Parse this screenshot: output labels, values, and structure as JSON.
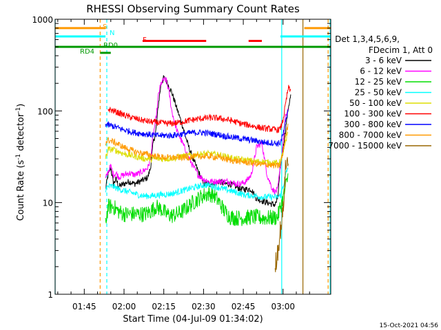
{
  "chart_data": {
    "type": "line",
    "title": "RHESSI Observing Summary Count Rates",
    "xlabel": "Start Time (04-Jul-09 01:34:02)",
    "ylabel_main": "Count Rate (s",
    "ylabel_sup": "-1",
    "ylabel_mid": " detector",
    "ylabel_end": ")",
    "y_scale": "log",
    "ylim": [
      1,
      1000
    ],
    "xlim": [
      34,
      138
    ],
    "x_unit": "minutes after 01:00 UT",
    "x_ticks": [
      {
        "value": 45,
        "label": "01:45"
      },
      {
        "value": 60,
        "label": "02:00"
      },
      {
        "value": 75,
        "label": "02:15"
      },
      {
        "value": 90,
        "label": "02:30"
      },
      {
        "value": 105,
        "label": "02:45"
      },
      {
        "value": 120,
        "label": "03:00"
      }
    ],
    "y_ticks": [
      {
        "value": 1,
        "label": "1"
      },
      {
        "value": 10,
        "label": "10"
      },
      {
        "value": 100,
        "label": "100"
      },
      {
        "value": 1000,
        "label": "1000"
      }
    ],
    "legend": {
      "position": "right",
      "header": [
        "Det 1,3,4,5,6,9,",
        "FDecim 1, Att 0"
      ],
      "entries": [
        {
          "label": "3 - 6 keV",
          "color": "#000000"
        },
        {
          "label": "6 - 12 keV",
          "color": "#ff00ff"
        },
        {
          "label": "12 - 25 keV",
          "color": "#00dd00"
        },
        {
          "label": "25 - 50 keV",
          "color": "#00ffff"
        },
        {
          "label": "50 - 100 keV",
          "color": "#dddd00"
        },
        {
          "label": "100 - 300 keV",
          "color": "#ff0000"
        },
        {
          "label": "300 - 800 keV",
          "color": "#0000ff"
        },
        {
          "label": "800 - 7000 keV",
          "color": "#ff9900"
        },
        {
          "label": "7000 - 15000 keV",
          "color": "#996600"
        }
      ]
    },
    "series": [
      {
        "name": "3 - 6 keV",
        "color": "#000000",
        "x": [
          53,
          54,
          55,
          56,
          57,
          58,
          60,
          62,
          64,
          66,
          68,
          69,
          70,
          71,
          72,
          73,
          74,
          75,
          76,
          78,
          80,
          82,
          84,
          85,
          86,
          88,
          90,
          92,
          94,
          96,
          98,
          100,
          102,
          104,
          106,
          108,
          110,
          112,
          114,
          116,
          117,
          118,
          119,
          120,
          121,
          122,
          123
        ],
        "y": [
          14,
          20,
          24,
          16,
          18,
          15,
          16,
          17,
          16,
          17,
          18,
          19,
          24,
          45,
          60,
          120,
          200,
          230,
          210,
          160,
          105,
          70,
          44,
          36,
          30,
          22,
          16,
          16,
          16,
          17,
          16,
          16,
          15,
          14,
          14,
          14,
          11,
          10.5,
          10,
          9.6,
          9.5,
          11,
          25,
          40,
          65,
          110,
          150
        ]
      },
      {
        "name": "6 - 12 keV",
        "color": "#ff00ff",
        "x": [
          53,
          54,
          55,
          56,
          57,
          58,
          60,
          62,
          64,
          66,
          68,
          69,
          70,
          71,
          72,
          73,
          74,
          75,
          76,
          77,
          78,
          80,
          82,
          84,
          86,
          88,
          90,
          92,
          94,
          96,
          98,
          100,
          102,
          104,
          106,
          108,
          109,
          110,
          112,
          114,
          116,
          117,
          118,
          119,
          120,
          121,
          122
        ],
        "y": [
          18,
          22,
          25,
          20,
          21,
          19,
          20,
          21,
          20,
          21,
          23,
          24,
          30,
          55,
          80,
          150,
          200,
          220,
          215,
          160,
          100,
          60,
          45,
          33,
          25,
          20,
          18,
          17,
          17,
          17,
          17,
          17,
          16,
          16,
          17,
          20,
          28,
          40,
          45,
          20,
          14,
          13,
          14,
          25,
          45,
          90,
          100
        ]
      },
      {
        "name": "12 - 25 keV",
        "color": "#00dd00",
        "x": [
          53,
          54,
          56,
          58,
          60,
          62,
          64,
          66,
          68,
          70,
          72,
          74,
          76,
          78,
          80,
          82,
          84,
          86,
          88,
          90,
          92,
          94,
          96,
          98,
          100,
          102,
          104,
          106,
          108,
          110,
          112,
          114,
          116,
          118,
          119,
          120,
          121,
          122
        ],
        "y": [
          6,
          9,
          9,
          8,
          7.5,
          7.5,
          7.5,
          7.5,
          7.5,
          8,
          9,
          8.5,
          7.5,
          7.2,
          7.5,
          8,
          9,
          10,
          11,
          12,
          12.5,
          12,
          10,
          8,
          7,
          6.8,
          6.8,
          6.8,
          7,
          6.9,
          6.8,
          6.8,
          6.8,
          7,
          9,
          11,
          15,
          20
        ]
      },
      {
        "name": "25 - 50 keV",
        "color": "#00ffff",
        "x": [
          53,
          54,
          56,
          58,
          60,
          62,
          64,
          66,
          68,
          70,
          72,
          74,
          76,
          78,
          80,
          82,
          84,
          86,
          88,
          90,
          92,
          94,
          96,
          98,
          100,
          102,
          104,
          106,
          108,
          110,
          112,
          114,
          116,
          118,
          119,
          120,
          121,
          122
        ],
        "y": [
          14,
          15,
          15,
          14,
          13.5,
          13,
          12.5,
          12,
          11.8,
          11.8,
          12,
          12.2,
          12.3,
          12.5,
          13,
          13.5,
          14,
          14.5,
          15,
          15.5,
          15.5,
          15,
          14.5,
          14,
          13.5,
          13,
          12.5,
          12,
          12,
          11.8,
          11.5,
          11.5,
          11.5,
          11.5,
          12,
          15,
          20,
          25
        ]
      },
      {
        "name": "50 - 100 keV",
        "color": "#dddd00",
        "x": [
          53,
          54,
          56,
          58,
          60,
          62,
          64,
          66,
          68,
          70,
          72,
          74,
          76,
          78,
          80,
          82,
          84,
          86,
          88,
          90,
          92,
          94,
          96,
          98,
          100,
          102,
          104,
          106,
          108,
          110,
          112,
          114,
          116,
          118,
          119,
          120,
          121,
          122
        ],
        "y": [
          30,
          38,
          38,
          36,
          34,
          33,
          32,
          31,
          30,
          30,
          30,
          30,
          30,
          30.5,
          31,
          32,
          32.5,
          33,
          33.5,
          34,
          34,
          33.5,
          33,
          32,
          31,
          30,
          29.5,
          29,
          28.5,
          28,
          28,
          27.5,
          27,
          27,
          28,
          35,
          45,
          60
        ]
      },
      {
        "name": "100 - 300 keV",
        "color": "#ff0000",
        "x": [
          54,
          56,
          58,
          60,
          62,
          64,
          66,
          68,
          70,
          72,
          74,
          76,
          78,
          80,
          82,
          84,
          86,
          88,
          90,
          92,
          94,
          96,
          98,
          100,
          102,
          104,
          106,
          108,
          110,
          112,
          114,
          116,
          118,
          119,
          120,
          121,
          122,
          123
        ],
        "y": [
          105,
          100,
          95,
          90,
          86,
          83,
          80,
          78,
          76,
          75,
          74,
          73,
          73,
          74,
          76,
          78,
          80,
          82,
          83,
          84,
          84,
          83,
          81,
          79,
          76,
          73,
          71,
          69,
          67,
          65,
          64,
          63,
          62,
          64,
          80,
          120,
          180,
          160
        ]
      },
      {
        "name": "300 - 800 keV",
        "color": "#0000ff",
        "x": [
          53,
          54,
          56,
          58,
          60,
          62,
          64,
          66,
          68,
          70,
          72,
          74,
          76,
          78,
          80,
          82,
          84,
          86,
          88,
          90,
          92,
          94,
          96,
          98,
          100,
          102,
          104,
          106,
          108,
          110,
          112,
          114,
          116,
          118,
          119,
          120,
          121,
          122
        ],
        "y": [
          72,
          70,
          68,
          65,
          62,
          60,
          58,
          57,
          56,
          55,
          54,
          54,
          54,
          54,
          55,
          56,
          57,
          58,
          58,
          58,
          57,
          56,
          55,
          53,
          52,
          51,
          50,
          49,
          48,
          47,
          46,
          45,
          45,
          44,
          45,
          55,
          75,
          110
        ]
      },
      {
        "name": "800 - 7000 keV",
        "color": "#ff9900",
        "x": [
          53,
          54,
          56,
          58,
          60,
          62,
          64,
          66,
          68,
          70,
          72,
          74,
          76,
          78,
          80,
          82,
          84,
          86,
          88,
          90,
          92,
          94,
          96,
          98,
          100,
          102,
          104,
          106,
          108,
          110,
          112,
          114,
          116,
          118,
          119,
          120,
          121,
          122
        ],
        "y": [
          45,
          48,
          46,
          43,
          40,
          38,
          36,
          35,
          34,
          33,
          32,
          31.5,
          31,
          31,
          31,
          31,
          31,
          31.5,
          32,
          32,
          32,
          31.5,
          31,
          30,
          29,
          28.5,
          28,
          27.5,
          27,
          26.5,
          26,
          26,
          25.5,
          25,
          26,
          35,
          55,
          70
        ]
      },
      {
        "name": "7000 - 15000 keV",
        "color": "#996600",
        "x": [
          117,
          118,
          119,
          120,
          121,
          122
        ],
        "y": [
          2,
          3,
          5,
          8,
          25,
          30
        ]
      }
    ],
    "attenuator_bars": [
      {
        "label": "S",
        "color": "#ff9900",
        "level": 800,
        "segments": [
          [
            34,
            53
          ],
          [
            128,
            138
          ]
        ]
      },
      {
        "label": "N",
        "color": "#00ffff",
        "level": 650,
        "segments": [
          [
            34,
            53
          ],
          [
            119,
            138
          ]
        ]
      },
      {
        "label": "F",
        "color": "#ff0000",
        "level": 580,
        "segments": [
          [
            67,
            91
          ],
          [
            107,
            112
          ]
        ]
      },
      {
        "label": "RD0",
        "color": "#009900",
        "level": 500,
        "segments": [
          [
            34,
            138
          ]
        ]
      },
      {
        "label": "RD4",
        "color": "#009900",
        "level": 430,
        "segments": [
          [
            51,
            55
          ]
        ]
      }
    ],
    "vlines": [
      {
        "x": 34,
        "color": "#00ffff",
        "dash": false
      },
      {
        "x": 51,
        "color": "#ff9900",
        "dash": true
      },
      {
        "x": 53.5,
        "color": "#00ffff",
        "dash": true
      },
      {
        "x": 119.5,
        "color": "#00ffff",
        "dash": false
      },
      {
        "x": 127.5,
        "color": "#996600",
        "dash": false
      },
      {
        "x": 137,
        "color": "#ff9900",
        "dash": true
      },
      {
        "x": 137.8,
        "color": "#00ffff",
        "dash": false
      }
    ]
  },
  "footer": {
    "timestamp": "15-Oct-2021 04:56"
  }
}
